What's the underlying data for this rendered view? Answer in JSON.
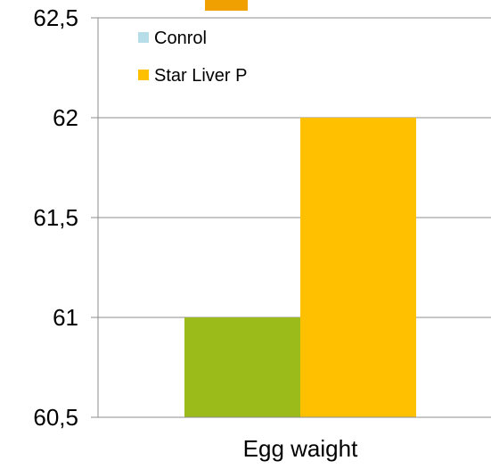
{
  "chart_data": {
    "type": "bar",
    "title": "",
    "xlabel": "",
    "ylabel": "",
    "categories": [
      "Egg waight"
    ],
    "ylim": [
      60.5,
      62.5
    ],
    "yticks": [
      60.5,
      61,
      61.5,
      62,
      62.5
    ],
    "ytick_labels": [
      "60,5",
      "61",
      "61,5",
      "62",
      "62,5"
    ],
    "grid": true,
    "legend_position": "top-left",
    "series": [
      {
        "name": "Conrol",
        "values": [
          61
        ],
        "color": "#9ABB1A",
        "legend_color": "#B7DDE8"
      },
      {
        "name": "Star Liver P",
        "values": [
          62
        ],
        "color": "#FFC000",
        "legend_color": "#FFC000"
      }
    ],
    "accent_color": "#F0A000"
  }
}
